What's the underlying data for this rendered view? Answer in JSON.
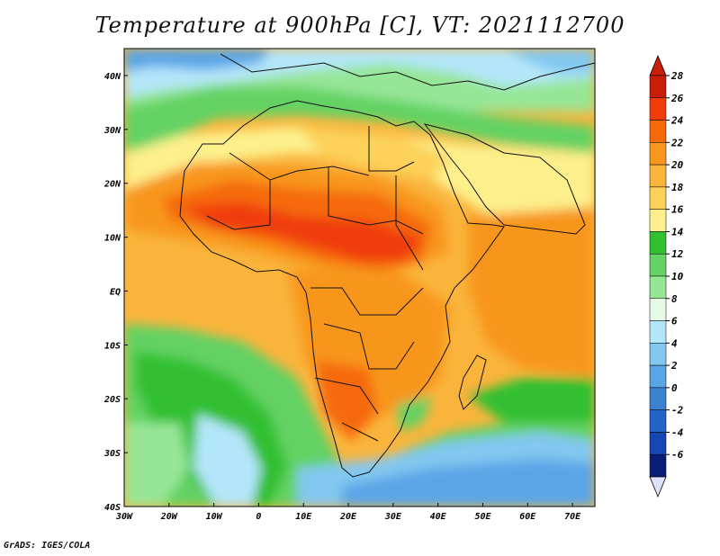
{
  "title": "Temperature at 900hPa [C], VT: 2021112700",
  "footer": "GrADS: IGES/COLA",
  "map": {
    "lon_range": [
      -30,
      75
    ],
    "lat_range": [
      -40,
      45
    ],
    "lon_ticks": [
      {
        "value": -30,
        "label": "30W"
      },
      {
        "value": -20,
        "label": "20W"
      },
      {
        "value": -10,
        "label": "10W"
      },
      {
        "value": 0,
        "label": "0"
      },
      {
        "value": 10,
        "label": "10E"
      },
      {
        "value": 20,
        "label": "20E"
      },
      {
        "value": 30,
        "label": "30E"
      },
      {
        "value": 40,
        "label": "40E"
      },
      {
        "value": 50,
        "label": "50E"
      },
      {
        "value": 60,
        "label": "60E"
      },
      {
        "value": 70,
        "label": "70E"
      }
    ],
    "lat_ticks": [
      {
        "value": 40,
        "label": "40N"
      },
      {
        "value": 30,
        "label": "30N"
      },
      {
        "value": 20,
        "label": "20N"
      },
      {
        "value": 10,
        "label": "10N"
      },
      {
        "value": 0,
        "label": "EQ"
      },
      {
        "value": -10,
        "label": "10S"
      },
      {
        "value": -20,
        "label": "20S"
      },
      {
        "value": -30,
        "label": "30S"
      },
      {
        "value": -40,
        "label": "40S"
      }
    ]
  },
  "colorbar": {
    "labels": [
      "28",
      "26",
      "24",
      "22",
      "20",
      "18",
      "16",
      "14",
      "12",
      "10",
      "8",
      "6",
      "4",
      "2",
      "0",
      "-2",
      "-4",
      "-6"
    ],
    "colors": [
      "#c81e0a",
      "#f03c0a",
      "#f66a0a",
      "#f8961e",
      "#fab43c",
      "#fcd25a",
      "#fdf08c",
      "#30c030",
      "#64d264",
      "#96e696",
      "#e6fae6",
      "#b4e6fa",
      "#82c8f0",
      "#5aa5e6",
      "#3c82d2",
      "#2264c8",
      "#1446b4",
      "#0a1e78"
    ],
    "top_triangle_color": "#c81e0a",
    "bottom_triangle_color": "#e0e0ff"
  }
}
